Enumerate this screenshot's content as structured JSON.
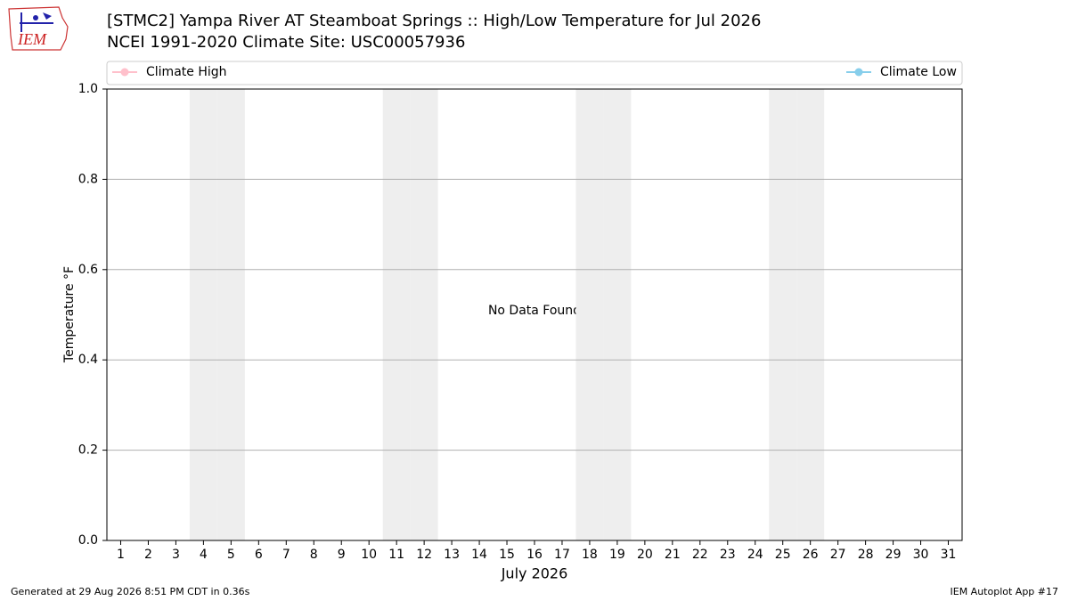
{
  "chart_data": {
    "type": "line",
    "title": "[STMC2] Yampa River  AT Steamboat Springs :: High/Low Temperature for Jul 2026",
    "subtitle": "NCEI 1991-2020 Climate Site: USC00057936",
    "logo_text": "IEM",
    "ylabel": "Temperature °F",
    "xlabel": "July 2026",
    "annotation": "No Data Found",
    "footer_left": "Generated at 29 Aug 2026 8:51 PM CDT in 0.36s",
    "footer_right": "IEM Autoplot App #17",
    "x": [
      1,
      2,
      3,
      4,
      5,
      6,
      7,
      8,
      9,
      10,
      11,
      12,
      13,
      14,
      15,
      16,
      17,
      18,
      19,
      20,
      21,
      22,
      23,
      24,
      25,
      26,
      27,
      28,
      29,
      30,
      31
    ],
    "xlim": [
      0.5,
      31.5
    ],
    "xticks": [
      1,
      2,
      3,
      4,
      5,
      6,
      7,
      8,
      9,
      10,
      11,
      12,
      13,
      14,
      15,
      16,
      17,
      18,
      19,
      20,
      21,
      22,
      23,
      24,
      25,
      26,
      27,
      28,
      29,
      30,
      31
    ],
    "shaded_x": [
      4,
      5,
      11,
      12,
      18,
      19,
      25,
      26
    ],
    "ylim": [
      0,
      1
    ],
    "yticks": [
      {
        "value": 0,
        "label": "0.0"
      },
      0.2,
      0.4,
      0.6,
      0.8,
      {
        "value": 1,
        "label": "1.0"
      }
    ],
    "grid": true,
    "series": [
      {
        "name": "Climate High",
        "color": "#ffc0cb",
        "values": [
          null,
          null,
          null,
          null,
          null,
          null,
          null,
          null,
          null,
          null,
          null,
          null,
          null,
          null,
          null,
          null,
          null,
          null,
          null,
          null,
          null,
          null,
          null,
          null,
          null,
          null,
          null,
          null,
          null,
          null,
          null
        ]
      },
      {
        "name": "Climate Low",
        "color": "#87ceeb",
        "values": [
          null,
          null,
          null,
          null,
          null,
          null,
          null,
          null,
          null,
          null,
          null,
          null,
          null,
          null,
          null,
          null,
          null,
          null,
          null,
          null,
          null,
          null,
          null,
          null,
          null,
          null,
          null,
          null,
          null,
          null,
          null
        ]
      }
    ]
  }
}
